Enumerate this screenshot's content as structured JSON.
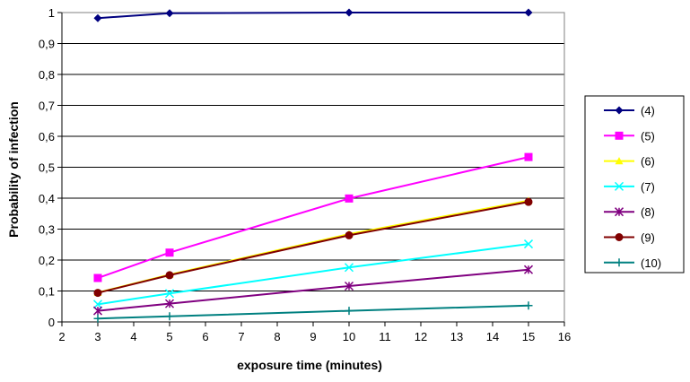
{
  "chart_data": {
    "type": "line",
    "title": "",
    "xlabel": "exposure time (minutes)",
    "ylabel": "Probability of infection",
    "xlim": [
      2,
      16
    ],
    "ylim": [
      0,
      1
    ],
    "x_ticks": [
      "2",
      "3",
      "4",
      "5",
      "6",
      "7",
      "8",
      "9",
      "10",
      "11",
      "12",
      "13",
      "14",
      "15",
      "16"
    ],
    "y_ticks": [
      "0",
      "0,1",
      "0,2",
      "0,3",
      "0,4",
      "0,5",
      "0,6",
      "0,7",
      "0,8",
      "0,9",
      "1"
    ],
    "grid": "horizontal major gridlines",
    "legend_position": "right",
    "x": [
      3,
      5,
      10,
      15
    ],
    "series": [
      {
        "name": "(4)",
        "values": [
          0.982,
          0.998,
          1.0,
          1.0
        ],
        "color": "#000080",
        "marker": "diamond"
      },
      {
        "name": "(5)",
        "values": [
          0.142,
          0.224,
          0.399,
          0.533
        ],
        "color": "#FF00FF",
        "marker": "square"
      },
      {
        "name": "(6)",
        "values": [
          0.095,
          0.153,
          0.284,
          0.392
        ],
        "color": "#FFFF00",
        "marker": "triangle"
      },
      {
        "name": "(7)",
        "values": [
          0.057,
          0.092,
          0.176,
          0.252
        ],
        "color": "#00FFFF",
        "marker": "x"
      },
      {
        "name": "(8)",
        "values": [
          0.036,
          0.059,
          0.116,
          0.169
        ],
        "color": "#800080",
        "marker": "star"
      },
      {
        "name": "(9)",
        "values": [
          0.094,
          0.151,
          0.28,
          0.388
        ],
        "color": "#800000",
        "marker": "circle"
      },
      {
        "name": "(10)",
        "values": [
          0.011,
          0.018,
          0.036,
          0.053
        ],
        "color": "#008080",
        "marker": "plus"
      }
    ]
  }
}
